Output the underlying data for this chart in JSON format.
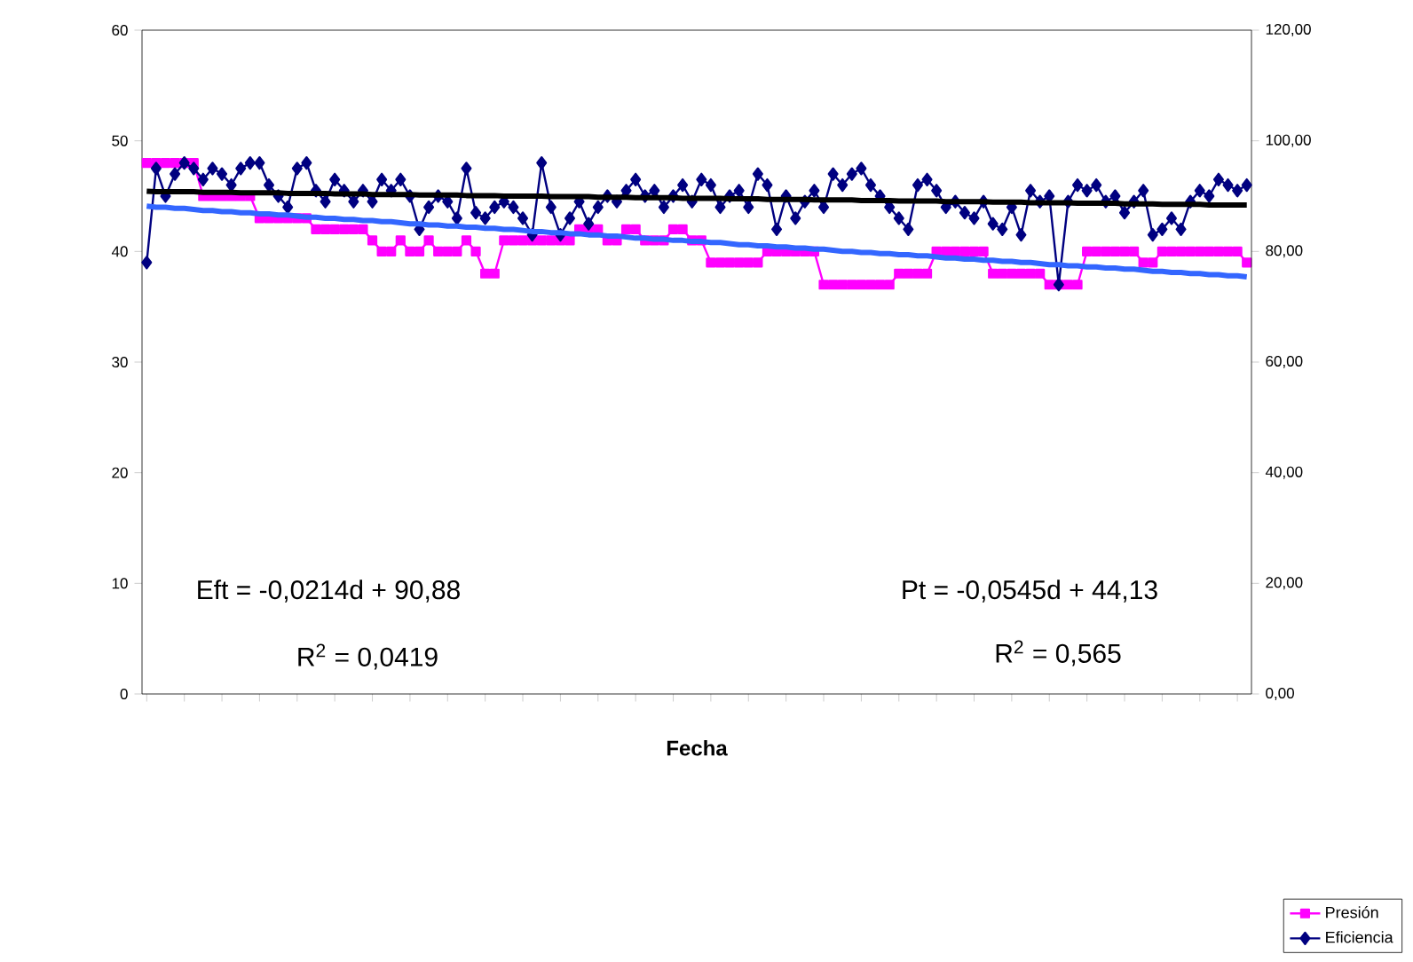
{
  "chart_data": {
    "type": "line",
    "xlabel": "Fecha",
    "categories": [
      null,
      null,
      null,
      null,
      null,
      null,
      null,
      null,
      null,
      null,
      null,
      null,
      null,
      null,
      null,
      null,
      null,
      null,
      null,
      null,
      null,
      null,
      null,
      null,
      null,
      null,
      null,
      null,
      null,
      null,
      null,
      null,
      null,
      null,
      null,
      null,
      null,
      null,
      null,
      null,
      null,
      null,
      null,
      null,
      null,
      null,
      null,
      null,
      null,
      null,
      null,
      null,
      null,
      null,
      null,
      null,
      null,
      null,
      null,
      null,
      null,
      null,
      null,
      null,
      null,
      null,
      null,
      null,
      null,
      null,
      null,
      null,
      null,
      null,
      null,
      null,
      null,
      null,
      null,
      null,
      null,
      null,
      null,
      null,
      null,
      null,
      null,
      null,
      null,
      null,
      null,
      null,
      null,
      null,
      null,
      null,
      null,
      null,
      null,
      null,
      null,
      null,
      null,
      null,
      null,
      null,
      null,
      null,
      null,
      null,
      null,
      null,
      null,
      null,
      null,
      null,
      null,
      null
    ],
    "ylim": [
      0,
      60
    ],
    "yticks": [
      0,
      10,
      20,
      30,
      40,
      50,
      60
    ],
    "y2lim": [
      0,
      120
    ],
    "y2ticks": [
      {
        "value": 0,
        "label": "0,00"
      },
      {
        "value": 20,
        "label": "20,00"
      },
      {
        "value": 40,
        "label": "40,00"
      },
      {
        "value": 60,
        "label": "60,00"
      },
      {
        "value": 80,
        "label": "80,00"
      },
      {
        "value": 100,
        "label": "100,00"
      },
      {
        "value": 120,
        "label": "120,00"
      }
    ],
    "legend": "bottom right",
    "series": [
      {
        "name": "Presión",
        "color": "#ff00ff",
        "marker": "square",
        "values": [
          48,
          48,
          48,
          48,
          48,
          48,
          45,
          45,
          45,
          45,
          45,
          45,
          43,
          43,
          43,
          43,
          43,
          43,
          42,
          42,
          42,
          42,
          42,
          42,
          41,
          40,
          40,
          41,
          40,
          40,
          41,
          40,
          40,
          40,
          41,
          40,
          38,
          38,
          41,
          41,
          41,
          41,
          41,
          41,
          41,
          41,
          42,
          42,
          42,
          41,
          41,
          42,
          42,
          41,
          41,
          41,
          42,
          42,
          41,
          41,
          39,
          39,
          39,
          39,
          39,
          39,
          40,
          40,
          40,
          40,
          40,
          40,
          37,
          37,
          37,
          37,
          37,
          37,
          37,
          37,
          38,
          38,
          38,
          38,
          40,
          40,
          40,
          40,
          40,
          40,
          38,
          38,
          38,
          38,
          38,
          38,
          37,
          37,
          37,
          37,
          40,
          40,
          40,
          40,
          40,
          40,
          39,
          39,
          40,
          40,
          40,
          40,
          40,
          40,
          40,
          40,
          40,
          39
        ]
      },
      {
        "name": "Eficiencia",
        "color": "#000080",
        "marker": "diamond",
        "axis": "y2",
        "values": [
          78,
          95,
          90,
          94,
          96,
          95,
          93,
          95,
          94,
          92,
          95,
          96,
          96,
          92,
          90,
          88,
          95,
          96,
          91,
          89,
          93,
          91,
          89,
          91,
          89,
          93,
          91,
          93,
          90,
          84,
          88,
          90,
          89,
          86,
          95,
          87,
          86,
          88,
          89,
          88,
          86,
          83,
          96,
          88,
          83,
          86,
          89,
          85,
          88,
          90,
          89,
          91,
          93,
          90,
          91,
          88,
          90,
          92,
          89,
          93,
          92,
          88,
          90,
          91,
          88,
          94,
          92,
          84,
          90,
          86,
          89,
          91,
          88,
          94,
          92,
          94,
          95,
          92,
          90,
          88,
          86,
          84,
          92,
          93,
          91,
          88,
          89,
          87,
          86,
          89,
          85,
          84,
          88,
          83,
          91,
          89,
          90,
          74,
          89,
          92,
          91,
          92,
          89,
          90,
          87,
          89,
          91,
          83,
          84,
          86,
          84,
          89,
          91,
          90,
          93,
          92,
          91,
          92
        ]
      },
      {
        "type": "line",
        "color": "#000000",
        "marker": "none",
        "axis": "y2",
        "values": [
          90.9,
          90.8,
          90.8,
          90.8,
          90.8,
          90.8,
          90.7,
          90.7,
          90.7,
          90.7,
          90.6,
          90.6,
          90.6,
          90.6,
          90.6,
          90.5,
          90.5,
          90.5,
          90.5,
          90.5,
          90.4,
          90.4,
          90.4,
          90.4,
          90.3,
          90.3,
          90.3,
          90.3,
          90.3,
          90.2,
          90.2,
          90.2,
          90.2,
          90.2,
          90.1,
          90.1,
          90.1,
          90.1,
          90.0,
          90.0,
          90.0,
          90.0,
          90.0,
          89.9,
          89.9,
          89.9,
          89.9,
          89.9,
          89.8,
          89.8,
          89.8,
          89.8,
          89.7,
          89.7,
          89.7,
          89.7,
          89.7,
          89.6,
          89.6,
          89.6,
          89.6,
          89.6,
          89.5,
          89.5,
          89.5,
          89.5,
          89.4,
          89.4,
          89.4,
          89.4,
          89.4,
          89.3,
          89.3,
          89.3,
          89.3,
          89.3,
          89.2,
          89.2,
          89.2,
          89.2,
          89.1,
          89.1,
          89.1,
          89.1,
          89.1,
          89.0,
          89.0,
          89.0,
          89.0,
          89.0,
          88.9,
          88.9,
          88.9,
          88.9,
          88.8,
          88.8,
          88.8,
          88.8,
          88.8,
          88.7,
          88.7,
          88.7,
          88.7,
          88.7,
          88.6,
          88.6,
          88.6,
          88.6,
          88.5,
          88.5,
          88.5,
          88.5,
          88.5,
          88.4,
          88.4,
          88.4,
          88.4,
          88.4
        ]
      },
      {
        "type": "line",
        "color": "#3366ff",
        "marker": "none",
        "values": [
          44.1,
          44.0,
          44.0,
          43.9,
          43.9,
          43.8,
          43.7,
          43.7,
          43.6,
          43.6,
          43.5,
          43.5,
          43.4,
          43.4,
          43.3,
          43.3,
          43.2,
          43.1,
          43.1,
          43.0,
          43.0,
          42.9,
          42.9,
          42.8,
          42.8,
          42.7,
          42.7,
          42.6,
          42.5,
          42.5,
          42.4,
          42.4,
          42.3,
          42.3,
          42.2,
          42.2,
          42.1,
          42.1,
          42.0,
          42.0,
          41.9,
          41.8,
          41.8,
          41.7,
          41.7,
          41.6,
          41.6,
          41.5,
          41.5,
          41.4,
          41.4,
          41.3,
          41.2,
          41.2,
          41.1,
          41.1,
          41.0,
          41.0,
          40.9,
          40.9,
          40.8,
          40.8,
          40.7,
          40.6,
          40.6,
          40.5,
          40.5,
          40.4,
          40.4,
          40.3,
          40.3,
          40.2,
          40.2,
          40.1,
          40.0,
          40.0,
          39.9,
          39.9,
          39.8,
          39.8,
          39.7,
          39.7,
          39.6,
          39.6,
          39.5,
          39.4,
          39.4,
          39.3,
          39.3,
          39.2,
          39.2,
          39.1,
          39.1,
          39.0,
          39.0,
          38.9,
          38.8,
          38.8,
          38.7,
          38.7,
          38.6,
          38.6,
          38.5,
          38.5,
          38.4,
          38.4,
          38.3,
          38.2,
          38.2,
          38.1,
          38.1,
          38.0,
          38.0,
          37.9,
          37.9,
          37.8,
          37.8,
          37.7
        ]
      }
    ],
    "annotations": [
      "Eft = -0,0214d + 90,88",
      "R$^{2}$ = 0,0419",
      "Pt = -0,0545d + 44,13",
      "R$^{2}$ = 0,565"
    ]
  }
}
